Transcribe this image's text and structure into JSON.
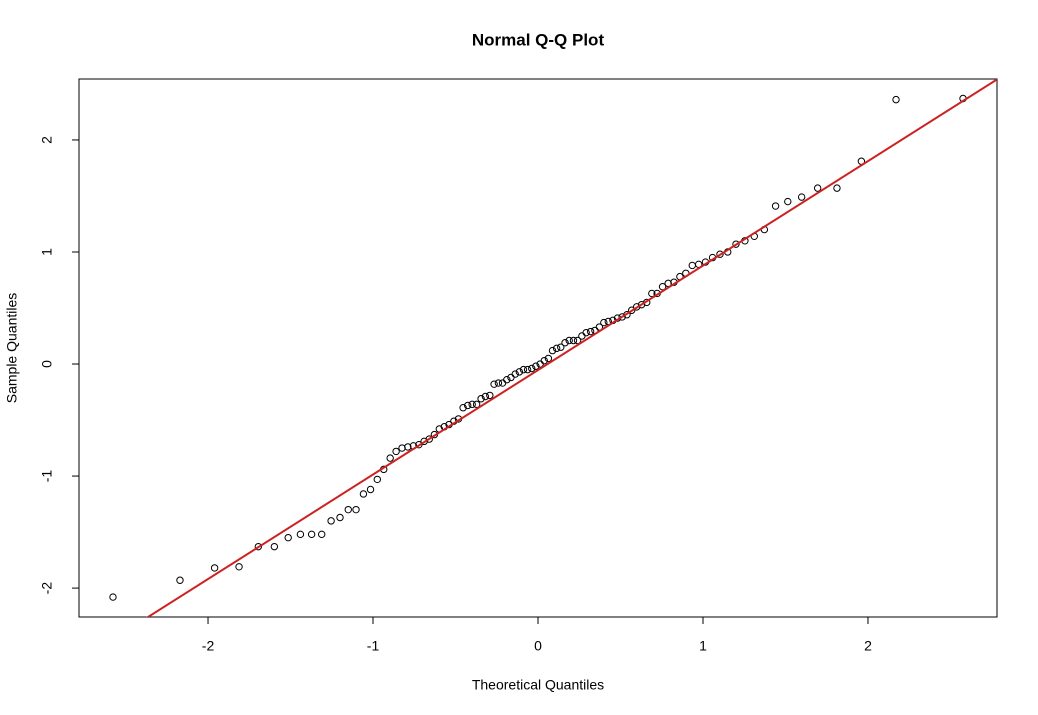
{
  "chart_data": {
    "type": "scatter",
    "title": "Normal Q-Q Plot",
    "x_label": "Theoretical Quantiles",
    "y_label": "Sample Quantiles",
    "x": [
      -2.576,
      -2.17,
      -1.96,
      -1.812,
      -1.695,
      -1.598,
      -1.514,
      -1.44,
      -1.372,
      -1.311,
      -1.254,
      -1.2,
      -1.15,
      -1.103,
      -1.058,
      -1.015,
      -0.974,
      -0.935,
      -0.896,
      -0.86,
      -0.824,
      -0.789,
      -0.755,
      -0.722,
      -0.69,
      -0.659,
      -0.628,
      -0.598,
      -0.568,
      -0.539,
      -0.51,
      -0.482,
      -0.454,
      -0.426,
      -0.399,
      -0.372,
      -0.345,
      -0.319,
      -0.292,
      -0.266,
      -0.24,
      -0.215,
      -0.189,
      -0.164,
      -0.138,
      -0.113,
      -0.088,
      -0.063,
      -0.038,
      -0.013,
      0.013,
      0.038,
      0.063,
      0.088,
      0.113,
      0.138,
      0.164,
      0.189,
      0.215,
      0.24,
      0.266,
      0.292,
      0.319,
      0.345,
      0.372,
      0.399,
      0.426,
      0.454,
      0.482,
      0.51,
      0.539,
      0.568,
      0.598,
      0.628,
      0.659,
      0.69,
      0.722,
      0.755,
      0.789,
      0.824,
      0.86,
      0.896,
      0.935,
      0.974,
      1.015,
      1.058,
      1.103,
      1.15,
      1.2,
      1.254,
      1.311,
      1.372,
      1.44,
      1.514,
      1.598,
      1.695,
      1.812,
      1.96,
      2.17,
      2.576
    ],
    "values": [
      -2.08,
      -1.93,
      -1.82,
      -1.81,
      -1.63,
      -1.63,
      -1.55,
      -1.52,
      -1.52,
      -1.52,
      -1.4,
      -1.37,
      -1.3,
      -1.3,
      -1.16,
      -1.12,
      -1.03,
      -0.94,
      -0.84,
      -0.78,
      -0.75,
      -0.74,
      -0.73,
      -0.72,
      -0.69,
      -0.67,
      -0.63,
      -0.58,
      -0.56,
      -0.54,
      -0.51,
      -0.49,
      -0.39,
      -0.37,
      -0.36,
      -0.36,
      -0.31,
      -0.29,
      -0.28,
      -0.18,
      -0.17,
      -0.17,
      -0.14,
      -0.12,
      -0.09,
      -0.07,
      -0.05,
      -0.05,
      -0.04,
      -0.02,
      0.0,
      0.03,
      0.05,
      0.12,
      0.14,
      0.15,
      0.19,
      0.21,
      0.21,
      0.21,
      0.25,
      0.28,
      0.29,
      0.3,
      0.33,
      0.37,
      0.38,
      0.39,
      0.41,
      0.42,
      0.44,
      0.48,
      0.51,
      0.53,
      0.55,
      0.63,
      0.63,
      0.69,
      0.72,
      0.73,
      0.78,
      0.81,
      0.88,
      0.89,
      0.91,
      0.95,
      0.98,
      1.0,
      1.07,
      1.1,
      1.14,
      1.2,
      1.41,
      1.45,
      1.49,
      1.57,
      1.57,
      1.81,
      2.36,
      2.37
    ],
    "color": "#000000",
    "xlim": [
      -2.782,
      2.782
    ],
    "ylim": [
      -2.258,
      2.544
    ],
    "xticks": [
      -2,
      -1,
      0,
      1,
      2
    ],
    "yticks": [
      -2,
      -1,
      0,
      1,
      2
    ],
    "line": {
      "intercept": -0.054,
      "slope": 0.9325,
      "color": "#cc2222"
    }
  }
}
